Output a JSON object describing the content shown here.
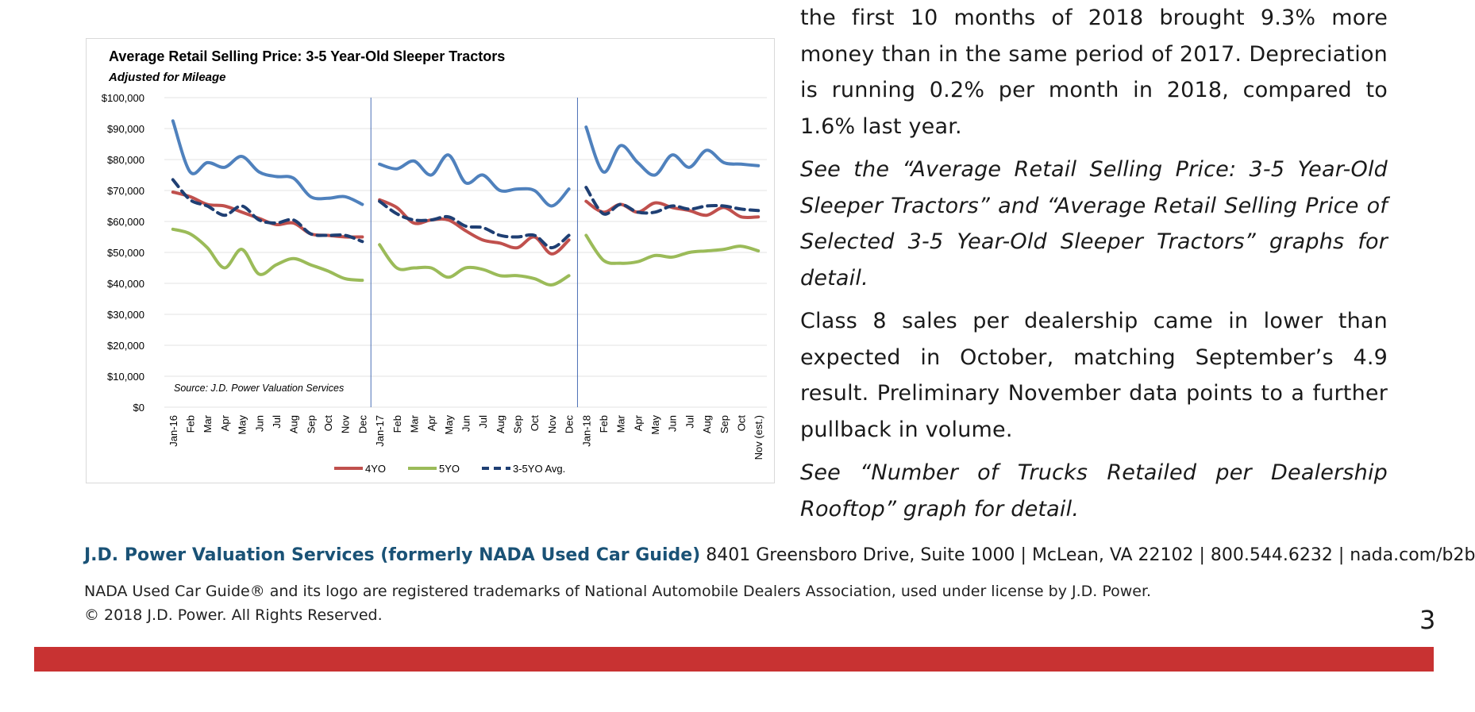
{
  "article": {
    "paragraphs": [
      {
        "text": "the first 10 months of 2018 brought 9.3% more money than in the same period of 2017. Depreciation is running 0.2% per month in 2018, compared to 1.6% last year.",
        "italic": false
      },
      {
        "text": "See the “Average Retail Selling Price: 3-5 Year-Old Sleeper Tractors” and “Average Retail Selling Price of Selected 3-5 Year-Old Sleeper Tractors” graphs for detail.",
        "italic": true
      },
      {
        "text": "Class 8 sales per dealership came in lower than expected in October, matching September’s 4.9 result. Preliminary November data points to a further pullback in volume.",
        "italic": false
      },
      {
        "text": "See “Number of Trucks Retailed per Dealership Rooftop” graph for detail.",
        "italic": true
      }
    ]
  },
  "footer": {
    "brand": "J.D. Power Valuation Services (formerly NADA Used Car Guide)",
    "contact": "8401 Greensboro Drive, Suite 1000 | McLean, VA 22102 | 800.544.6232 | nada.com/b2b",
    "trademark": "NADA Used Car Guide® and its logo are registered trademarks of National Automobile Dealers Association, used under license by J.D. Power.",
    "copyright": "© 2018 J.D. Power. All Rights Reserved.",
    "page_number": "3",
    "bar_color": "#c83232",
    "brand_color": "#1a5276"
  },
  "chart_data": {
    "type": "line",
    "title": "Average Retail Selling Price: 3-5 Year-Old Sleeper Tractors",
    "subtitle": "Adjusted for Mileage",
    "source": "Source: J.D. Power Valuation Services",
    "ylim": [
      0,
      100000
    ],
    "yticks": [
      "$0",
      "$10,000",
      "$20,000",
      "$30,000",
      "$40,000",
      "$50,000",
      "$60,000",
      "$70,000",
      "$80,000",
      "$90,000",
      "$100,000"
    ],
    "grid": true,
    "legend_position": "bottom",
    "categories": [
      "Jan-16",
      "Feb",
      "Mar",
      "Apr",
      "May",
      "Jun",
      "Jul",
      "Aug",
      "Sep",
      "Oct",
      "Nov",
      "Dec",
      "Jan-17",
      "Feb",
      "Mar",
      "Apr",
      "May",
      "Jun",
      "Jul",
      "Aug",
      "Sep",
      "Oct",
      "Nov",
      "Dec",
      "Jan-18",
      "Feb",
      "Mar",
      "Apr",
      "May",
      "Jun",
      "Jul",
      "Aug",
      "Sep",
      "Oct",
      "Nov (est.)"
    ],
    "year_breaks_after": [
      11,
      23
    ],
    "series": [
      {
        "key": "seg",
        "color": "#4f81bd",
        "dashed": false,
        "legend": false,
        "values": [
          92500,
          76000,
          79000,
          77500,
          81000,
          76000,
          74500,
          74000,
          68000,
          67500,
          68000,
          65500,
          78500,
          77000,
          79500,
          75000,
          81500,
          72500,
          75000,
          70000,
          70500,
          70000,
          65000,
          70500,
          90500,
          76000,
          84500,
          79000,
          75000,
          81500,
          77500,
          83000,
          79000,
          78500,
          78000
        ]
      },
      {
        "name": "4YO",
        "key": "4yo",
        "color": "#c0504d",
        "dashed": false,
        "legend": true,
        "values": [
          69500,
          68000,
          65500,
          65000,
          63000,
          61000,
          59000,
          59500,
          56000,
          55500,
          55000,
          55000,
          67000,
          64500,
          59500,
          60500,
          60500,
          57000,
          54000,
          53000,
          51500,
          55000,
          49500,
          54000,
          66500,
          63000,
          65500,
          63000,
          66000,
          64500,
          63500,
          62000,
          64500,
          61500,
          61500
        ]
      },
      {
        "name": "5YO",
        "key": "5yo",
        "color": "#9bbb59",
        "dashed": false,
        "legend": true,
        "values": [
          57500,
          56000,
          51500,
          45000,
          51000,
          43000,
          46000,
          48000,
          46000,
          44000,
          41500,
          41000,
          52500,
          45000,
          45000,
          45000,
          42000,
          45000,
          44500,
          42500,
          42500,
          41500,
          39500,
          42500,
          55500,
          47500,
          46500,
          47000,
          49000,
          48500,
          50000,
          50500,
          51000,
          52000,
          50500
        ]
      },
      {
        "name": "3-5YO Avg.",
        "key": "avg",
        "color": "#1f3f73",
        "dashed": true,
        "legend": true,
        "values": [
          73500,
          67000,
          65000,
          62000,
          65000,
          60500,
          59500,
          60500,
          56000,
          55500,
          55500,
          53500,
          66500,
          62500,
          60500,
          60500,
          61500,
          58500,
          58000,
          55500,
          55000,
          55500,
          51500,
          55500,
          71000,
          62500,
          65500,
          63000,
          63000,
          65000,
          64000,
          65000,
          65000,
          64000,
          63500
        ]
      }
    ]
  }
}
